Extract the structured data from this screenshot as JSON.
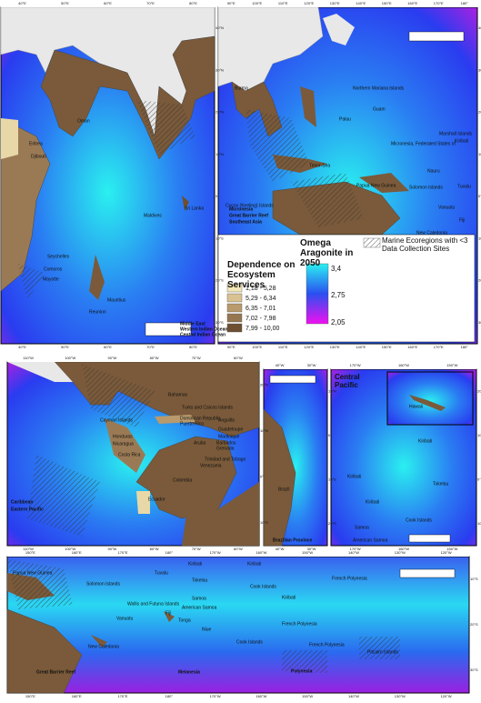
{
  "legend": {
    "dependence_title": "Dependence on Ecosystem Services",
    "classes": [
      {
        "label": "1,18 - 5,28",
        "color": "#f2e6b8"
      },
      {
        "label": "5,29 - 6,34",
        "color": "#d9c292"
      },
      {
        "label": "6,35 - 7,01",
        "color": "#b89a6c"
      },
      {
        "label": "7,02 - 7,98",
        "color": "#967650"
      },
      {
        "label": "7,99 - 10,00",
        "color": "#6e4f31"
      }
    ],
    "omega_title": "Omega Aragonite in 2050",
    "omega_ticks": [
      "3,4",
      "2,75",
      "2,05"
    ],
    "hatch_label": "Marine Ecoregions with <3 Data Collection Sites"
  },
  "panels": [
    {
      "regions": [
        "Middle East",
        "Western Indian Ocean",
        "Central Indian Ocean"
      ],
      "places": [
        "Eritrea",
        "Djibouti",
        "Oman",
        "Sri Lanka",
        "Maldives",
        "Seychelles",
        "Comoros",
        "Mayotte",
        "Mauritius",
        "Reunion"
      ],
      "top_ticks": [
        "40°E",
        "50°E",
        "60°E",
        "70°E",
        "80°E"
      ],
      "side_ticks": [
        "40°N",
        "30°N",
        "20°N",
        "10°N",
        "0°",
        "10°S",
        "20°S",
        "30°S"
      ]
    },
    {
      "regions": [
        "Micronesia",
        "Great Barrier Reef",
        "Southeast Asia"
      ],
      "places": [
        "Burma",
        "Northern Mariana Islands",
        "Guam",
        "Palau",
        "Marshall Islands",
        "Micronesia, Federated States of",
        "Kiribati",
        "Nauru",
        "Tuvalu",
        "Solomon Islands",
        "Timor-Sea",
        "Papua New Guinea",
        "Vanuatu",
        "Fiji",
        "New Caledonia",
        "Cocos (Keeling) Islands"
      ],
      "top_ticks": [
        "90°E",
        "100°E",
        "110°E",
        "120°E",
        "130°E",
        "140°E",
        "150°E",
        "160°E",
        "170°E",
        "180°"
      ],
      "side_ticks": [
        "40°N",
        "30°N",
        "20°N",
        "10°N",
        "0°",
        "10°S",
        "20°S",
        "30°S"
      ]
    },
    {
      "regions": [
        "Caribbean",
        "Eastern Pacific"
      ],
      "places": [
        "Bahamas",
        "Turks and Caicos Islands",
        "Cayman Islands",
        "Dominican Republic",
        "Puerto Rico",
        "Anguilla",
        "Guadeloupe",
        "Martinique",
        "Barbados",
        "Grenada",
        "Trinidad and Tobago",
        "Aruba",
        "Honduras",
        "Nicaragua",
        "Costa Rica",
        "Venezuela",
        "Colombia",
        "Ecuador"
      ],
      "top_ticks": [
        "110°W",
        "100°W",
        "90°W",
        "80°W",
        "70°W",
        "60°W"
      ],
      "side_ticks": [
        "20°N",
        "10°N",
        "0°",
        "10°S"
      ]
    },
    {
      "regions": [
        "Brazilian Province"
      ],
      "places": [
        "Brazil"
      ],
      "top_ticks": [
        "40°W",
        "30°W"
      ],
      "side_ticks": [
        "10°N",
        "0°",
        "10°S",
        "20°S"
      ]
    },
    {
      "regions": [
        "Central Pacific"
      ],
      "places": [
        "Hawaii",
        "Kiribati",
        "Kiribati",
        "Tokelau",
        "Kiribati",
        "Cook Islands",
        "Samoa",
        "American Samoa"
      ],
      "top_ticks": [
        "170°W",
        "160°W",
        "150°W"
      ],
      "side_ticks": [
        "20°N",
        "10°N",
        "0°",
        "10°S"
      ]
    },
    {
      "regions": [
        "Great Barrier Reef",
        "Melanesia",
        "Polynesia"
      ],
      "places": [
        "Papua New Guinea",
        "Solomon Islands",
        "Tuvalu",
        "Kiribati",
        "Kiribati",
        "Tokelau",
        "Cook Islands",
        "French Polynesia",
        "Kiribati",
        "Wallis and Futuna Islands",
        "Samoa",
        "American Samoa",
        "Fiji",
        "Tonga",
        "Niue",
        "Vanuatu",
        "French Polynesia",
        "New Caledonia",
        "Cook Islands",
        "French Polynesia",
        "Pitcairn Islands"
      ],
      "top_ticks": [
        "150°E",
        "160°E",
        "170°E",
        "180°",
        "170°W",
        "160°W",
        "150°W",
        "140°W",
        "130°W",
        "120°W"
      ],
      "side_ticks": [
        "10°S",
        "20°S",
        "30°S"
      ]
    }
  ]
}
